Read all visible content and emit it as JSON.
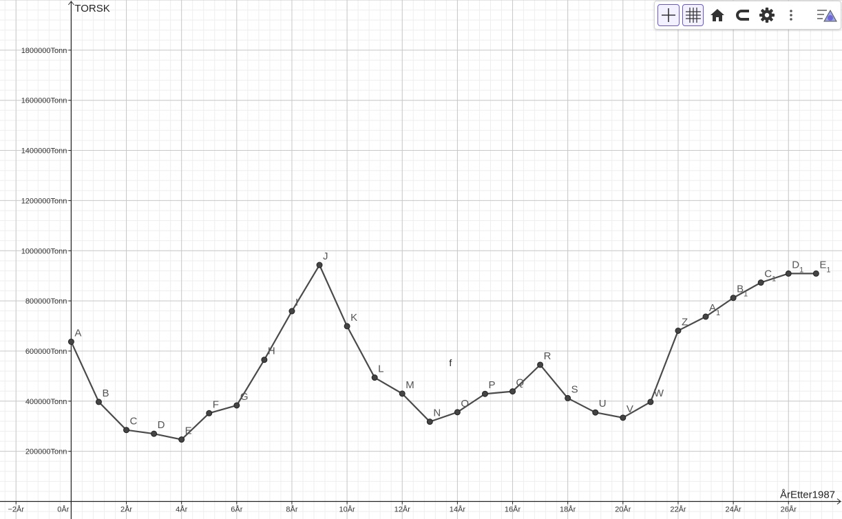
{
  "toolbar": {
    "buttons": [
      {
        "name": "axes-toggle-button",
        "icon": "axes-icon",
        "active": true
      },
      {
        "name": "grid-toggle-button",
        "icon": "grid-icon",
        "active": true
      },
      {
        "name": "home-button",
        "icon": "home-icon",
        "active": false
      },
      {
        "name": "magnet-button",
        "icon": "magnet-icon",
        "active": false
      },
      {
        "name": "settings-button",
        "icon": "gear-icon",
        "active": false
      },
      {
        "name": "more-button",
        "icon": "more-vertical-icon",
        "active": false
      },
      {
        "name": "algebra-view-button",
        "icon": "algebra-view-icon",
        "active": false
      }
    ],
    "accent": "#6557d2"
  },
  "chart_data": {
    "type": "line",
    "ylabel": "TORSK",
    "xlabel": "ÅrEtter1987",
    "x_tick_labels": [
      "−2År",
      "0År",
      "2År",
      "4År",
      "6År",
      "8År",
      "10År",
      "12År",
      "14År",
      "16År",
      "18År",
      "20År",
      "22År",
      "24År",
      "26År"
    ],
    "x_tick_values": [
      -2,
      0,
      2,
      4,
      6,
      8,
      10,
      12,
      14,
      16,
      18,
      20,
      22,
      24,
      26
    ],
    "y_tick_labels": [
      "200000Tonn",
      "400000Tonn",
      "600000Tonn",
      "800000Tonn",
      "1000000Tonn",
      "1200000Tonn",
      "1400000Tonn",
      "1600000Tonn",
      "1800000Tonn"
    ],
    "y_tick_values": [
      200000,
      400000,
      600000,
      800000,
      1000000,
      1200000,
      1400000,
      1600000,
      1800000
    ],
    "xlim": [
      -2.58,
      27.94
    ],
    "ylim": [
      -70000,
      2000000
    ],
    "grid": true,
    "line_color": "#4a4a4a",
    "point_color": "#444444",
    "function_label": "f",
    "series": [
      {
        "name": "f",
        "points": [
          {
            "label": "A",
            "sub": "",
            "x": 0,
            "y": 637000
          },
          {
            "label": "B",
            "sub": "",
            "x": 1,
            "y": 397000
          },
          {
            "label": "C",
            "sub": "",
            "x": 2,
            "y": 285000
          },
          {
            "label": "D",
            "sub": "",
            "x": 3,
            "y": 270000
          },
          {
            "label": "E",
            "sub": "",
            "x": 4,
            "y": 247000
          },
          {
            "label": "F",
            "sub": "",
            "x": 5,
            "y": 352000
          },
          {
            "label": "G",
            "sub": "",
            "x": 6,
            "y": 383000
          },
          {
            "label": "H",
            "sub": "",
            "x": 7,
            "y": 565000
          },
          {
            "label": "I",
            "sub": "",
            "x": 8,
            "y": 759000
          },
          {
            "label": "J",
            "sub": "",
            "x": 9,
            "y": 943000
          },
          {
            "label": "K",
            "sub": "",
            "x": 10,
            "y": 699000
          },
          {
            "label": "L",
            "sub": "",
            "x": 11,
            "y": 494000
          },
          {
            "label": "M",
            "sub": "",
            "x": 12,
            "y": 430000
          },
          {
            "label": "N",
            "sub": "",
            "x": 13,
            "y": 318000
          },
          {
            "label": "O",
            "sub": "",
            "x": 14,
            "y": 356000
          },
          {
            "label": "P",
            "sub": "",
            "x": 15,
            "y": 429000
          },
          {
            "label": "Q",
            "sub": "",
            "x": 16,
            "y": 439000
          },
          {
            "label": "R",
            "sub": "",
            "x": 17,
            "y": 545000
          },
          {
            "label": "S",
            "sub": "",
            "x": 18,
            "y": 412000
          },
          {
            "label": "U",
            "sub": "",
            "x": 19,
            "y": 355000
          },
          {
            "label": "V",
            "sub": "",
            "x": 20,
            "y": 334000
          },
          {
            "label": "W",
            "sub": "",
            "x": 21,
            "y": 397000
          },
          {
            "label": "Z",
            "sub": "",
            "x": 22,
            "y": 681000
          },
          {
            "label": "A",
            "sub": "1",
            "x": 23,
            "y": 737000
          },
          {
            "label": "B",
            "sub": "1",
            "x": 24,
            "y": 812000
          },
          {
            "label": "C",
            "sub": "1",
            "x": 25,
            "y": 873000
          },
          {
            "label": "D",
            "sub": "1",
            "x": 26,
            "y": 909000
          },
          {
            "label": "E",
            "sub": "1",
            "x": 27,
            "y": 909000
          }
        ]
      }
    ]
  }
}
